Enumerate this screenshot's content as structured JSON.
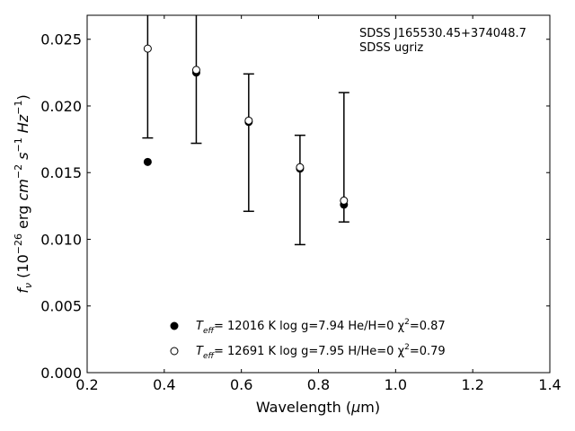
{
  "chart_data": {
    "type": "scatter",
    "annotation_lines": [
      "SDSS J165530.45+374048.7",
      "SDSS ugriz"
    ],
    "xlabel": {
      "main": "Wavelength (",
      "mu": "μ",
      "tail": "m)"
    },
    "ylabel": {
      "f": "f",
      "nu": "ν",
      "pre": " (10",
      "exp1": "−26",
      "mid1": " erg ",
      "cm": "cm",
      "exp2": "−2",
      "s": " s",
      "exp3": "−1",
      "hz": " Hz",
      "exp4": "−1",
      "close": ")"
    },
    "xlim": [
      0.2,
      1.4
    ],
    "ylim": [
      0.0,
      0.0268
    ],
    "xticks": [
      0.2,
      0.4,
      0.6,
      0.8,
      1.0,
      1.2,
      1.4
    ],
    "xtick_labels": [
      "0.2",
      "0.4",
      "0.6",
      "0.8",
      "1.0",
      "1.2",
      "1.4"
    ],
    "yticks": [
      0.0,
      0.005,
      0.01,
      0.015,
      0.02,
      0.025
    ],
    "ytick_labels": [
      "0.000",
      "0.005",
      "0.010",
      "0.015",
      "0.020",
      "0.025"
    ],
    "observed": {
      "x": [
        0.357,
        0.483,
        0.619,
        0.752,
        0.866
      ],
      "y": [
        0.0243,
        0.0227,
        0.0189,
        0.0154,
        0.0129
      ],
      "yerr_low": [
        0.0176,
        0.0172,
        0.0121,
        0.0096,
        0.0113
      ],
      "yerr_high": [
        0.0268,
        0.0268,
        0.0224,
        0.0178,
        0.021
      ]
    },
    "series": [
      {
        "marker": "filled",
        "legend": {
          "t": "T",
          "sub": "eff",
          "body": "= 12016 K  log g=7.94  He/H=0  χ",
          "sup": "2",
          "tail": "=0.87"
        },
        "x": [
          0.357,
          0.483,
          0.619,
          0.752,
          0.866
        ],
        "y": [
          0.0158,
          0.0225,
          0.0188,
          0.0153,
          0.0126
        ]
      },
      {
        "marker": "open",
        "legend": {
          "t": "T",
          "sub": "eff",
          "body": "= 12691 K  log g=7.95  H/He=0  χ",
          "sup": "2",
          "tail": "=0.79"
        },
        "x": [
          0.357,
          0.483,
          0.619,
          0.752,
          0.866
        ],
        "y": [
          0.0243,
          0.0227,
          0.0189,
          0.0154,
          0.0129
        ]
      }
    ],
    "legend_placement": "lower-center",
    "grid": false
  }
}
